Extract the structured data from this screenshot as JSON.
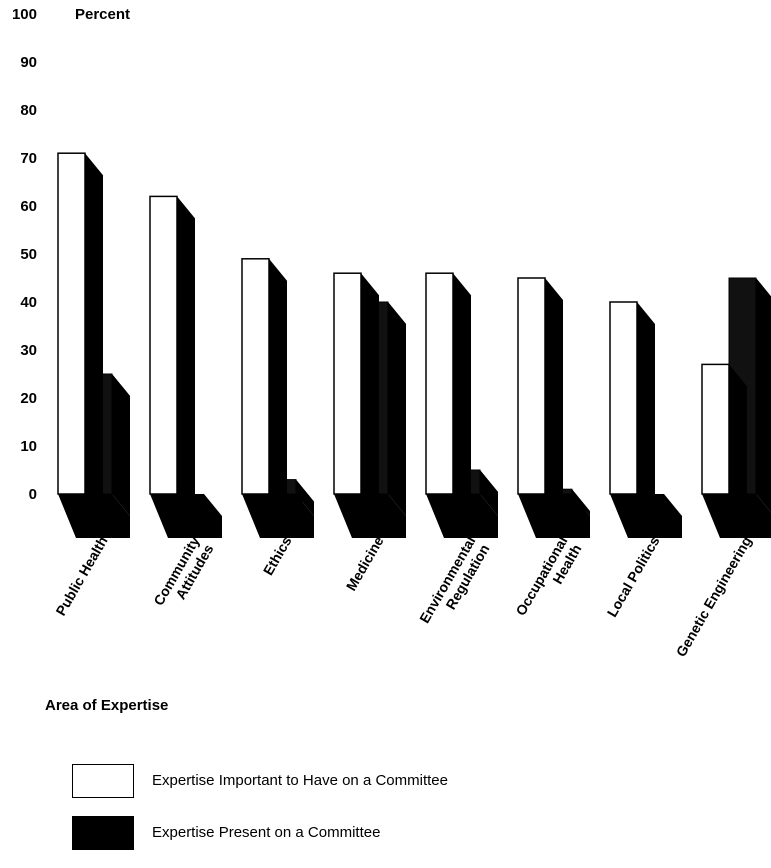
{
  "chart_data": {
    "type": "bar",
    "ylabel": "Percent",
    "xlabel": "Area of Expertise",
    "ylim": [
      0,
      100
    ],
    "yticks": [
      0,
      10,
      20,
      30,
      40,
      50,
      60,
      70,
      80,
      90,
      100
    ],
    "categories": [
      [
        "Public Health"
      ],
      [
        "Community",
        "Attitudes"
      ],
      [
        "Ethics"
      ],
      [
        "Medicine"
      ],
      [
        "Environmental",
        "Regulation"
      ],
      [
        "Occupational",
        "Health"
      ],
      [
        "Local Politics"
      ],
      [
        "Genetic Engineering"
      ]
    ],
    "series": [
      {
        "name": "Expertise Important to Have on a Committee",
        "values": [
          71,
          62,
          49,
          46,
          46,
          45,
          40,
          27
        ],
        "color": "#ffffff"
      },
      {
        "name": "Expertise Present on a Committee",
        "values": [
          25,
          0,
          3,
          40,
          5,
          1,
          0,
          45
        ],
        "color": "#000000"
      }
    ],
    "legend_position": "bottom-left",
    "grid": false
  }
}
